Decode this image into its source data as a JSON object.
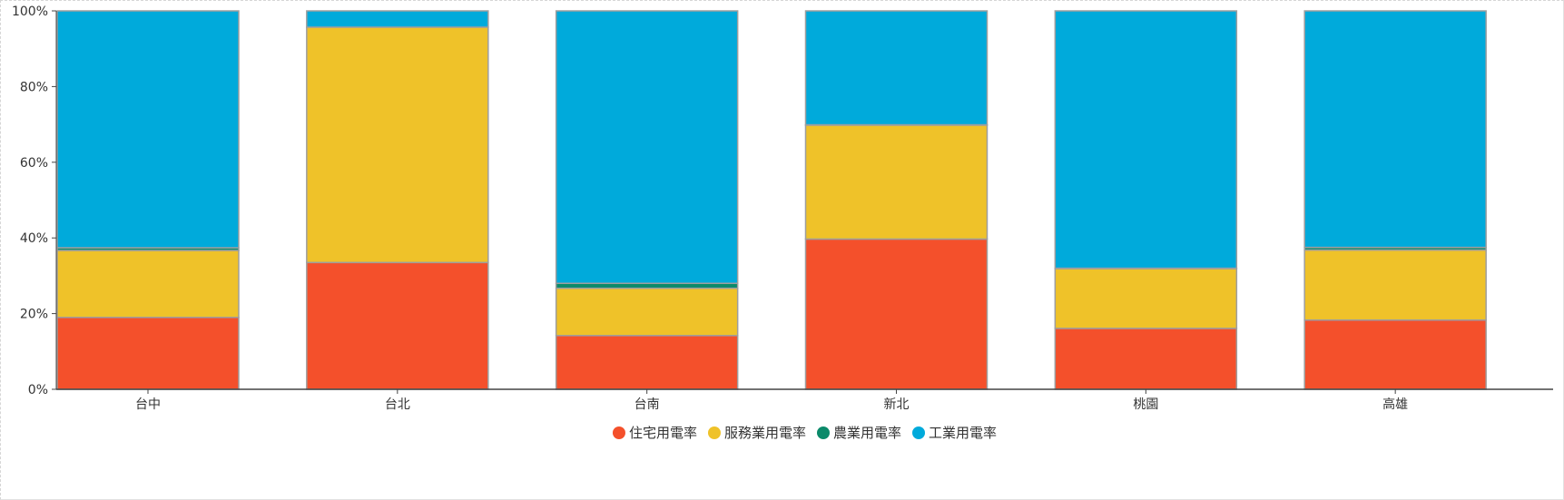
{
  "chart_data": {
    "type": "bar",
    "stacked": true,
    "normalized": true,
    "categories": [
      "台中",
      "台北",
      "台南",
      "新北",
      "桃園",
      "高雄"
    ],
    "series": [
      {
        "name": "住宅用電率",
        "color": "#f4502b",
        "values": [
          19.0,
          33.5,
          14.2,
          39.7,
          16.1,
          18.3
        ]
      },
      {
        "name": "服務業用電率",
        "color": "#efc229",
        "values": [
          17.7,
          62.2,
          12.5,
          30.1,
          15.8,
          18.5
        ]
      },
      {
        "name": "農業用電率",
        "color": "#0b8a6a",
        "values": [
          0.7,
          0.0,
          1.3,
          0.1,
          0.1,
          0.7
        ]
      },
      {
        "name": "工業用電率",
        "color": "#00aadb",
        "values": [
          62.6,
          4.3,
          72.0,
          30.1,
          68.0,
          62.5
        ]
      }
    ],
    "yticks": [
      "0%",
      "20%",
      "40%",
      "60%",
      "80%",
      "100%"
    ],
    "ylim": [
      0,
      100
    ],
    "grid": false,
    "legend": "bottom-center",
    "bar_border_color": "#9e9e9e",
    "axis_color": "#444444"
  }
}
